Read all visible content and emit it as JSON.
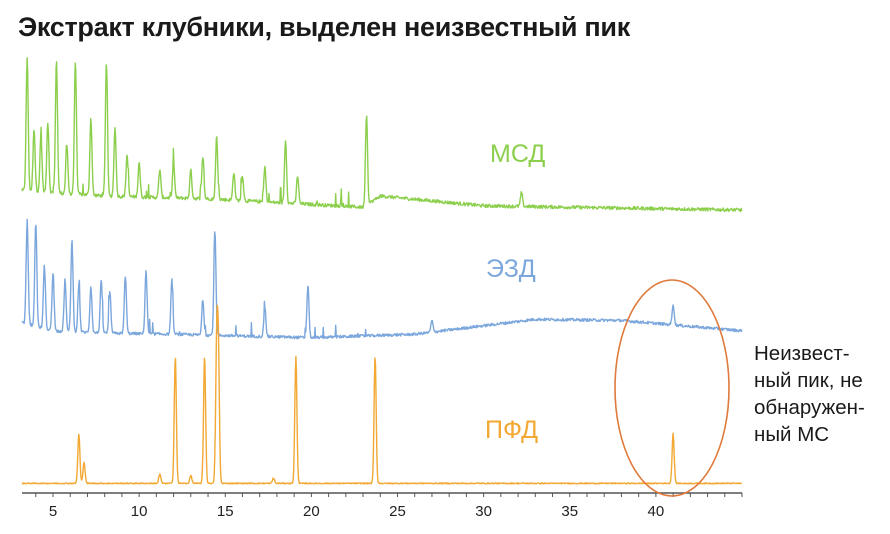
{
  "title": "Экстракт клубники, выделен неизвестный пик",
  "annotation": {
    "lines": [
      "Неизвест-",
      "ный пик, не",
      "обнаружен-",
      "ный МС"
    ],
    "ellipse_color": "#e07a3c"
  },
  "chart_data": {
    "type": "line",
    "title": "Экстракт клубники, выделен неизвестный пик",
    "xlabel": "",
    "ylabel": "",
    "xlim": [
      3.2,
      45
    ],
    "x_ticks": [
      5,
      10,
      15,
      20,
      25,
      30,
      35,
      40
    ],
    "grid": false,
    "legend": "inline labels",
    "series": [
      {
        "name": "МСД",
        "color": "#8ccf4d",
        "baseline": [
          [
            3.2,
            0.14
          ],
          [
            8,
            0.1
          ],
          [
            14,
            0.08
          ],
          [
            23,
            0.02
          ],
          [
            24,
            0.1
          ],
          [
            30,
            0.03
          ],
          [
            45,
            0.0
          ]
        ],
        "peaks": [
          [
            3.5,
            0.95
          ],
          [
            3.9,
            0.45
          ],
          [
            4.3,
            0.4
          ],
          [
            4.7,
            0.5
          ],
          [
            5.2,
            0.95
          ],
          [
            5.8,
            0.35
          ],
          [
            6.3,
            0.95
          ],
          [
            7.2,
            0.55
          ],
          [
            8.1,
            0.95
          ],
          [
            8.6,
            0.5
          ],
          [
            9.3,
            0.3
          ],
          [
            10.0,
            0.25
          ],
          [
            11.2,
            0.2
          ],
          [
            12.0,
            0.25
          ],
          [
            13.0,
            0.2
          ],
          [
            13.7,
            0.3
          ],
          [
            14.5,
            0.45
          ],
          [
            15.5,
            0.2
          ],
          [
            16.0,
            0.18
          ],
          [
            17.3,
            0.25
          ],
          [
            18.5,
            0.45
          ],
          [
            19.2,
            0.2
          ],
          [
            23.2,
            0.65
          ],
          [
            32.2,
            0.1
          ]
        ]
      },
      {
        "name": "ЭЗД",
        "color": "#7ba7dc",
        "baseline": [
          [
            3.2,
            0.15
          ],
          [
            5,
            0.08
          ],
          [
            8,
            0.06
          ],
          [
            12,
            0.05
          ],
          [
            20,
            0.02
          ],
          [
            26,
            0.05
          ],
          [
            33,
            0.18
          ],
          [
            38,
            0.17
          ],
          [
            45,
            0.08
          ]
        ],
        "peaks": [
          [
            3.5,
            0.9
          ],
          [
            4.0,
            0.9
          ],
          [
            4.5,
            0.55
          ],
          [
            5.0,
            0.5
          ],
          [
            5.7,
            0.45
          ],
          [
            6.1,
            0.8
          ],
          [
            6.5,
            0.4
          ],
          [
            7.2,
            0.4
          ],
          [
            7.8,
            0.45
          ],
          [
            8.3,
            0.35
          ],
          [
            9.2,
            0.5
          ],
          [
            10.4,
            0.55
          ],
          [
            11.9,
            0.45
          ],
          [
            13.7,
            0.3
          ],
          [
            14.4,
            0.9
          ],
          [
            17.3,
            0.25
          ],
          [
            19.8,
            0.45
          ],
          [
            27.0,
            0.1
          ],
          [
            41.0,
            0.18
          ]
        ]
      },
      {
        "name": "ПФД",
        "color": "#f2a833",
        "baseline": [
          [
            3.2,
            0.02
          ],
          [
            45,
            0.02
          ]
        ],
        "peaks": [
          [
            6.5,
            0.37
          ],
          [
            6.8,
            0.16
          ],
          [
            11.2,
            0.07
          ],
          [
            12.1,
            0.96
          ],
          [
            13.0,
            0.06
          ],
          [
            13.8,
            0.96
          ],
          [
            14.5,
            0.97
          ],
          [
            14.6,
            0.94
          ],
          [
            17.8,
            0.04
          ],
          [
            19.1,
            0.96
          ],
          [
            23.7,
            0.96
          ],
          [
            41.0,
            0.38
          ]
        ]
      }
    ]
  }
}
